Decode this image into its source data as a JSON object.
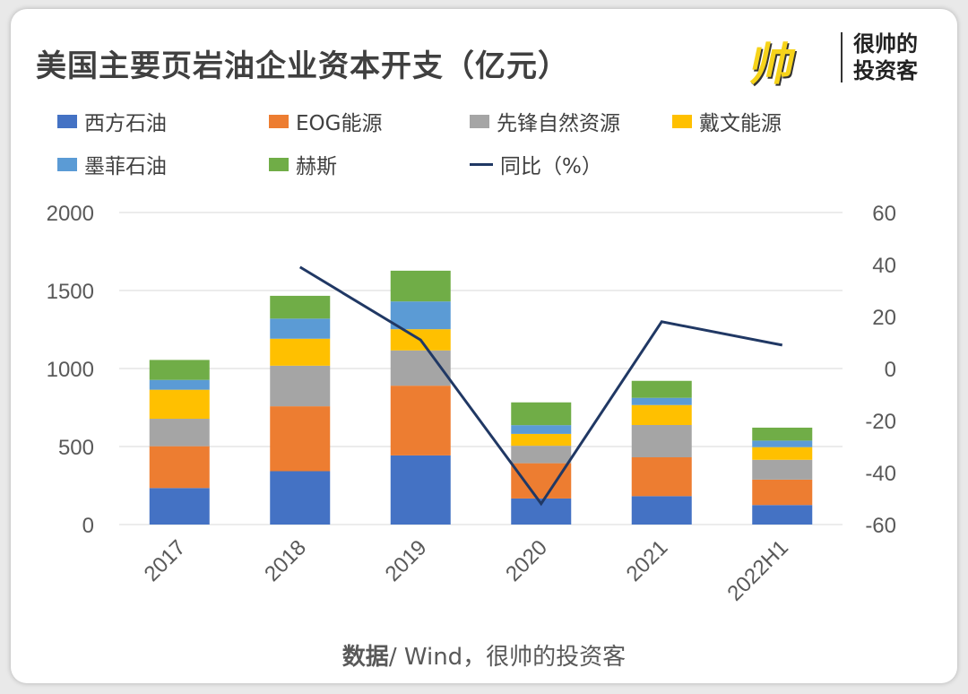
{
  "title": "美国主要页岩油企业资本开支（亿元）",
  "logo": {
    "mark": "帅",
    "line1": "很帅的",
    "line2": "投资客"
  },
  "footer": {
    "bold": "数据",
    "rest": "/ Wind，很帅的投资客"
  },
  "chart_data": {
    "type": "bar",
    "stacked": true,
    "title": "美国主要页岩油企业资本开支（亿元）",
    "categories": [
      "2017",
      "2018",
      "2019",
      "2020",
      "2021",
      "2022H1"
    ],
    "ylim": [
      0,
      2000
    ],
    "yticks": [
      "0",
      "500",
      "1000",
      "1500",
      "2000"
    ],
    "y2lim": [
      -60,
      60
    ],
    "y2ticks": [
      "-60",
      "-40",
      "-20",
      "0",
      "20",
      "40",
      "60"
    ],
    "grid": true,
    "legend_position": "top",
    "series": [
      {
        "name": "西方石油",
        "color": "#4472c4",
        "values": [
          234,
          342,
          443,
          167,
          182,
          125
        ]
      },
      {
        "name": "EOG能源",
        "color": "#ed7d31",
        "values": [
          268,
          416,
          447,
          226,
          249,
          163
        ]
      },
      {
        "name": "先锋自然资源",
        "color": "#a5a5a5",
        "values": [
          176,
          260,
          226,
          112,
          207,
          127
        ]
      },
      {
        "name": "戴文能源",
        "color": "#ffc000",
        "values": [
          186,
          173,
          136,
          76,
          128,
          81
        ]
      },
      {
        "name": "墨菲石油",
        "color": "#5b9bd5",
        "values": [
          63,
          129,
          178,
          56,
          46,
          42
        ]
      },
      {
        "name": "赫斯",
        "color": "#70ad47",
        "values": [
          128,
          146,
          197,
          146,
          109,
          83
        ]
      }
    ],
    "line_series": {
      "name": "同比（%）",
      "color": "#203864",
      "axis": "right",
      "values": [
        null,
        39,
        11,
        -52,
        18,
        9
      ]
    }
  }
}
